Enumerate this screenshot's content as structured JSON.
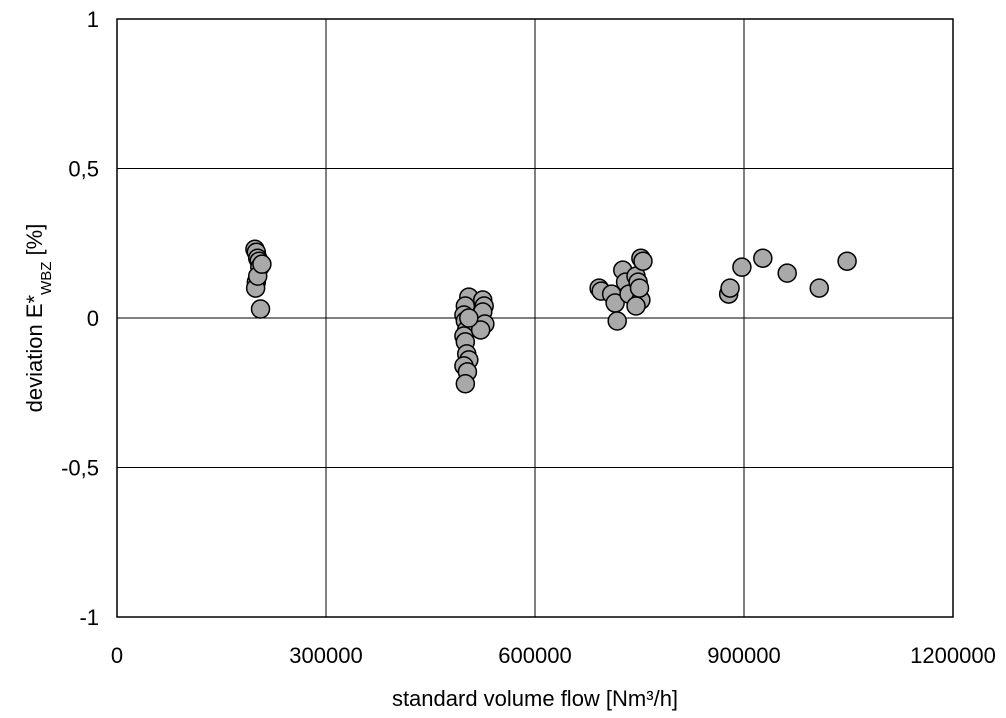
{
  "chart_data": {
    "type": "scatter",
    "title": "",
    "xlabel": "standard volume flow [Nm³/h]",
    "ylabel": {
      "main": "deviation E*",
      "subscript": "WBZ",
      "unit": " [%]"
    },
    "xlim": [
      0,
      1200000
    ],
    "ylim": [
      -1,
      1
    ],
    "x_ticks": [
      0,
      300000,
      600000,
      900000,
      1200000
    ],
    "x_tick_labels": [
      "0",
      "300000",
      "600000",
      "900000",
      "1200000"
    ],
    "y_ticks": [
      -1,
      -0.5,
      0,
      0.5,
      1
    ],
    "y_tick_labels": [
      "-1",
      "-0,5",
      "0",
      "0,5",
      "1"
    ],
    "grid": true,
    "legend": false,
    "colors": {
      "marker_fill": "#a9a9a9",
      "marker_edge": "#000000",
      "grid": "#000000"
    },
    "series": [
      {
        "x": [
          198000,
          200000,
          202000,
          204000,
          205000,
          200000,
          199000,
          202000,
          208000,
          206000,
          505000,
          500000,
          498000,
          500000,
          502000,
          498000,
          500000,
          502000,
          505000,
          498000,
          503000,
          500000,
          525000,
          527000,
          525000,
          528000,
          522000,
          505000,
          692000,
          695000,
          710000,
          715000,
          718000,
          726000,
          730000,
          735000,
          745000,
          748000,
          752000,
          755000,
          752000,
          745000,
          750000,
          878000,
          880000,
          897000,
          927000,
          962000,
          1008000,
          1048000
        ],
        "y": [
          0.23,
          0.22,
          0.2,
          0.19,
          0.17,
          0.12,
          0.1,
          0.14,
          0.18,
          0.03,
          0.07,
          0.04,
          0.01,
          -0.01,
          -0.04,
          -0.06,
          -0.08,
          -0.12,
          -0.14,
          -0.16,
          -0.18,
          -0.22,
          0.06,
          0.04,
          0.02,
          -0.02,
          -0.04,
          0.0,
          0.1,
          0.09,
          0.08,
          0.05,
          -0.01,
          0.16,
          0.12,
          0.08,
          0.14,
          0.12,
          0.2,
          0.19,
          0.06,
          0.04,
          0.1,
          0.08,
          0.1,
          0.17,
          0.2,
          0.15,
          0.1,
          0.19
        ]
      }
    ]
  }
}
